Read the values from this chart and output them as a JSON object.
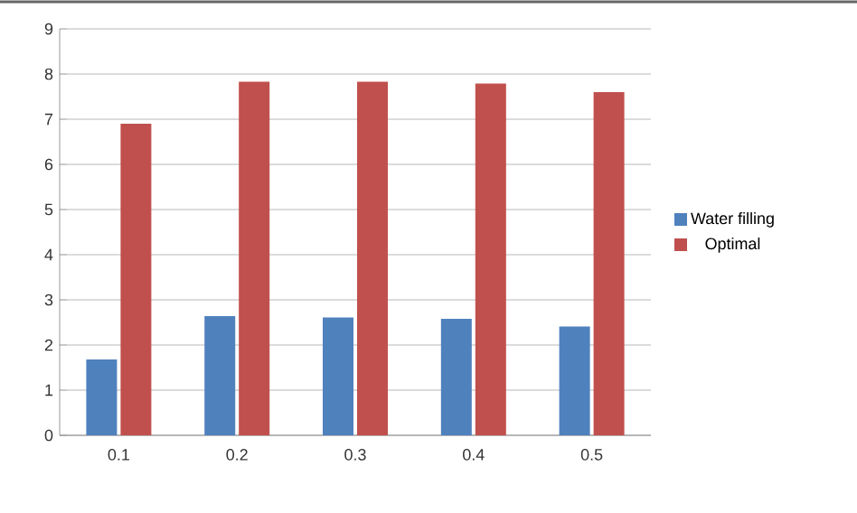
{
  "chart_data": {
    "type": "bar",
    "categories": [
      "0.1",
      "0.2",
      "0.3",
      "0.4",
      "0.5"
    ],
    "series": [
      {
        "name": "Water filling",
        "color": "#4f81bd",
        "values": [
          1.68,
          2.64,
          2.61,
          2.58,
          2.41
        ]
      },
      {
        "name": "Optimal",
        "color": "#c0504d",
        "values": [
          6.9,
          7.83,
          7.83,
          7.79,
          7.6
        ]
      }
    ],
    "ylim": [
      0,
      9
    ],
    "yticks": [
      0,
      1,
      2,
      3,
      4,
      5,
      6,
      7,
      8,
      9
    ],
    "grid": "y",
    "legend": "right"
  }
}
